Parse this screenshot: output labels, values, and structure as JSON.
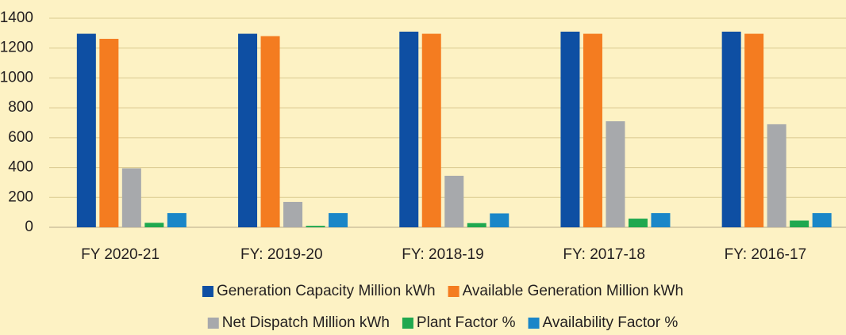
{
  "chart_data": {
    "type": "bar",
    "categories": [
      "FY 2020-21",
      "FY: 2019-20",
      "FY: 2018-19",
      "FY: 2017-18",
      "FY: 2016-17"
    ],
    "series": [
      {
        "name": "Generation Capacity Million kWh",
        "color": "#0e4fa3",
        "values": [
          1296,
          1296,
          1310,
          1310,
          1310
        ]
      },
      {
        "name": "Available Generation Million kWh",
        "color": "#f47c20",
        "values": [
          1262,
          1280,
          1296,
          1296,
          1296
        ]
      },
      {
        "name": "Net Dispatch Million kWh",
        "color": "#a7a9ac",
        "values": [
          395,
          170,
          345,
          710,
          690
        ]
      },
      {
        "name": "Plant Factor %",
        "color": "#1fa84f",
        "values": [
          30,
          10,
          28,
          58,
          45
        ]
      },
      {
        "name": "Availability Factor %",
        "color": "#1a86c8",
        "values": [
          95,
          95,
          93,
          95,
          95
        ]
      }
    ],
    "ylim": [
      0,
      1400
    ],
    "yticks": [
      0,
      200,
      400,
      600,
      800,
      1000,
      1200,
      1400
    ],
    "grid": true
  }
}
